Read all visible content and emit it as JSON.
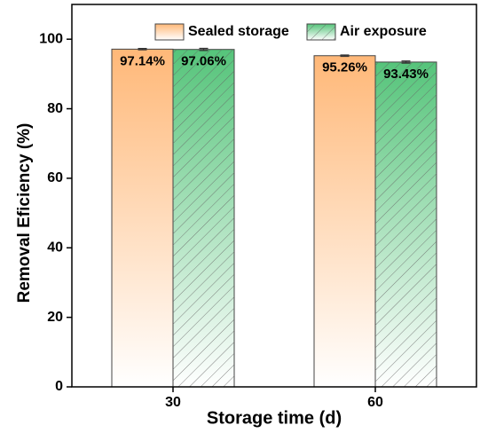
{
  "chart_data": {
    "type": "bar",
    "x_label": "Storage time (d)",
    "y_label": "Removal Eficiency (%)",
    "categories": [
      "30",
      "60"
    ],
    "series": [
      {
        "name": "Sealed storage",
        "color": "#ffb878",
        "values": [
          97.14,
          95.26
        ],
        "value_labels": [
          "97.14%",
          "95.26%"
        ],
        "errors": [
          0.2,
          0.2
        ],
        "hatch": false
      },
      {
        "name": "Air exposure",
        "color": "#55c47a",
        "values": [
          97.06,
          93.43
        ],
        "value_labels": [
          "97.06%",
          "93.43%"
        ],
        "errors": [
          0.3,
          0.3
        ],
        "hatch": true
      }
    ],
    "ylim": [
      0,
      110
    ],
    "yticks": [
      0,
      20,
      40,
      60,
      80,
      100
    ]
  }
}
